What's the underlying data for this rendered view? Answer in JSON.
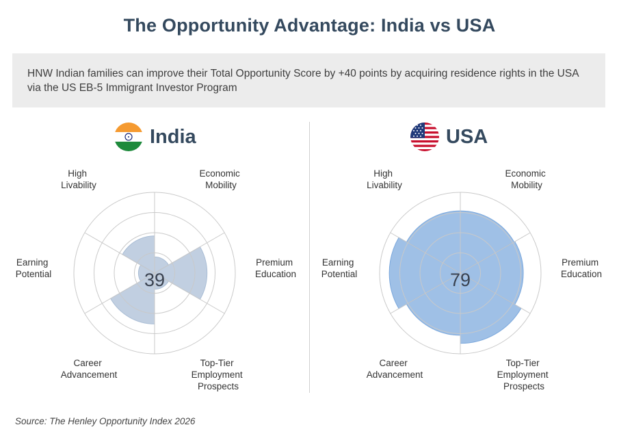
{
  "page": {
    "title": "The Opportunity Advantage: India vs USA",
    "subtitle": "HNW Indian families can improve their Total Opportunity Score by +40 points by acquiring residence rights in the USA via the US EB-5 Immigrant Investor Program",
    "source": "Source: The Henley Opportunity Index 2026"
  },
  "chart_data": [
    {
      "type": "polar-area",
      "country": "India",
      "flag_icon": "india-flag-icon",
      "total_score": "39",
      "color": "#a9bdd5",
      "scale_max": 100,
      "categories": [
        "Economic Mobility",
        "Premium Education",
        "Top-Tier Employment Prospects",
        "Career Advancement",
        "Earning Potential",
        "High Livability"
      ],
      "values": [
        20,
        65,
        20,
        63,
        20,
        46
      ]
    },
    {
      "type": "polar-area",
      "country": "USA",
      "flag_icon": "usa-flag-icon",
      "total_score": "79",
      "color": "#7aa7dc",
      "scale_max": 100,
      "categories": [
        "Economic Mobility",
        "Premium Education",
        "Top-Tier Employment Prospects",
        "Career Advancement",
        "Earning Potential",
        "High Livability"
      ],
      "values": [
        77,
        78,
        87,
        77,
        88,
        77
      ]
    }
  ],
  "axis_labels": {
    "economic": [
      "Economic",
      "Mobility"
    ],
    "premium": [
      "Premium",
      "Education"
    ],
    "toptier": [
      "Top-Tier",
      "Employment",
      "Prospects"
    ],
    "career": [
      "Career",
      "Advancement"
    ],
    "earning": [
      "Earning",
      "Potential"
    ],
    "livability": [
      "High",
      "Livability"
    ]
  }
}
